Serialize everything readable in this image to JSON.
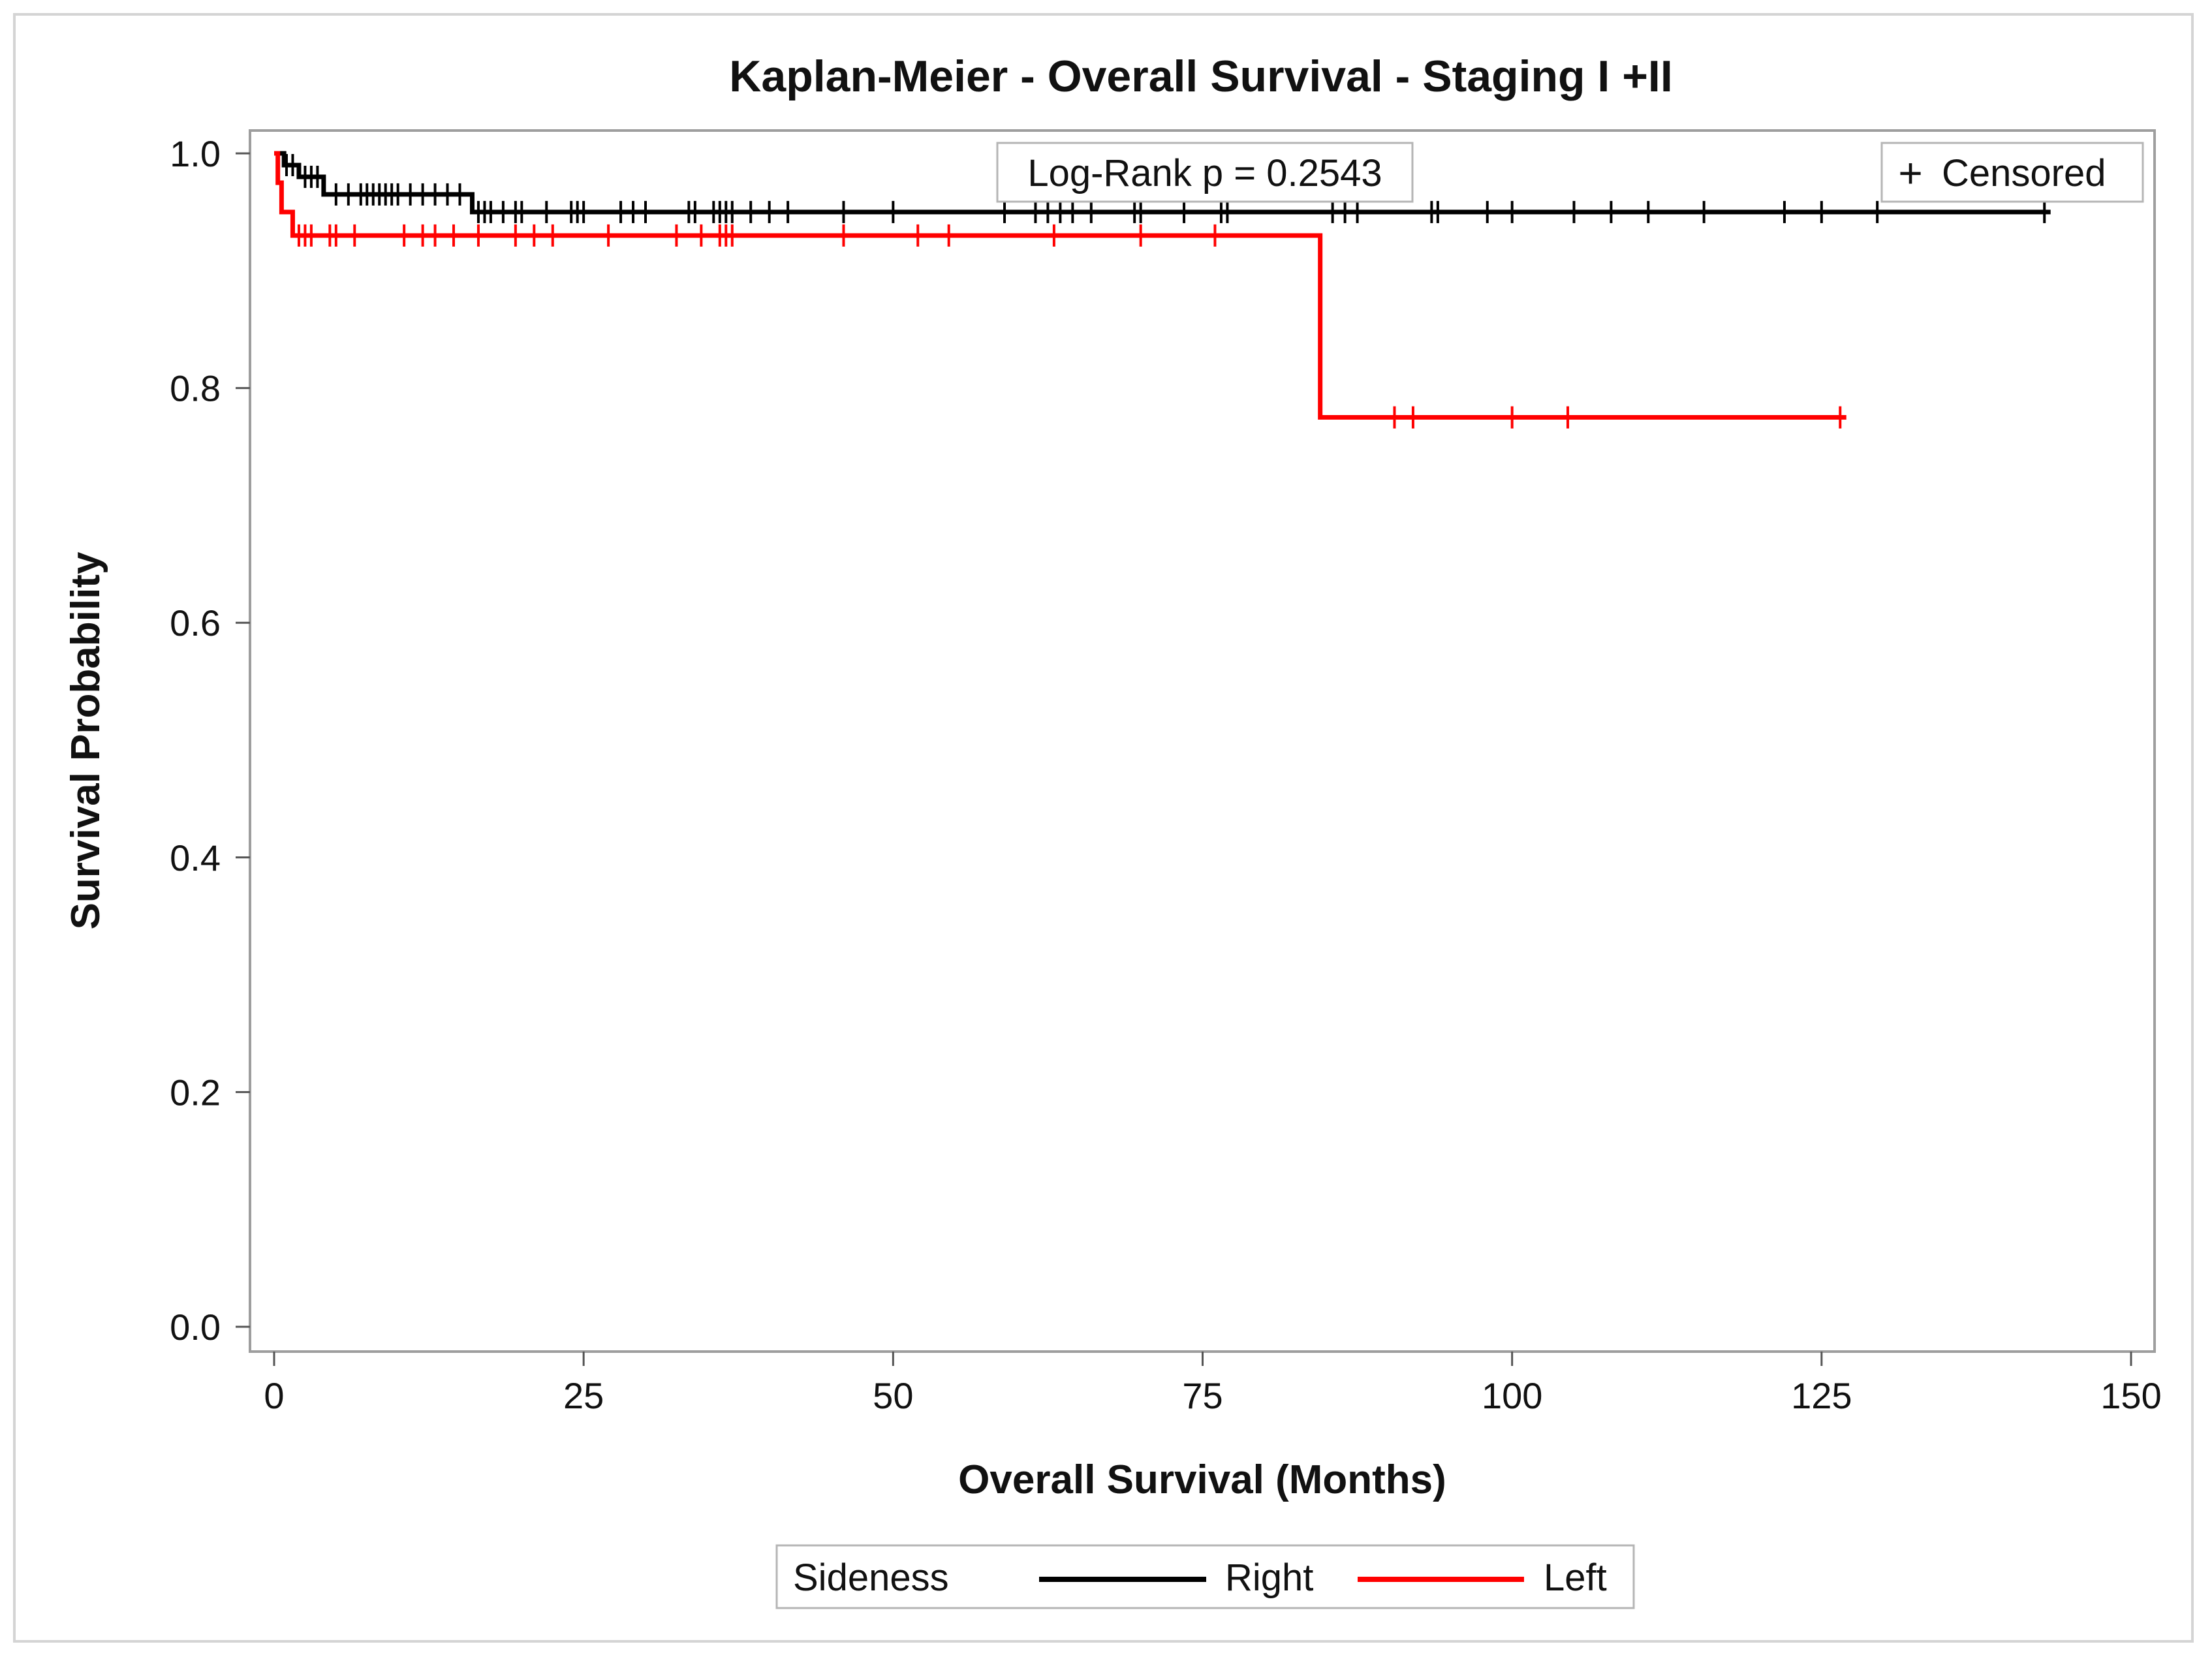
{
  "chart_data": {
    "type": "line",
    "subtype": "kaplan-meier",
    "title": "Kaplan-Meier - Overall Survival - Staging I +II",
    "xlabel": "Overall Survival (Months)",
    "ylabel": "Survival Probability",
    "xlim": [
      0,
      150
    ],
    "ylim": [
      0,
      1
    ],
    "xticks": [
      "0",
      "25",
      "50",
      "75",
      "100",
      "125",
      "150"
    ],
    "yticks": [
      "0.0",
      "0.2",
      "0.4",
      "0.6",
      "0.8",
      "1.0"
    ],
    "annotation": "Log-Rank p = 0.2543",
    "censor_legend": {
      "symbol": "+",
      "label": "Censored"
    },
    "legend": {
      "title": "Sideness",
      "position": "bottom"
    },
    "series": [
      {
        "name": "Right",
        "color": "#000000",
        "steps": [
          [
            0,
            1.0
          ],
          [
            0.8,
            0.99
          ],
          [
            2.0,
            0.98
          ],
          [
            4.0,
            0.965
          ],
          [
            16.0,
            0.95
          ],
          [
            143.5,
            0.95
          ]
        ],
        "censored": [
          1,
          1.5,
          2.5,
          3,
          3.5,
          5,
          6,
          7,
          7.5,
          8,
          8.5,
          9,
          9.5,
          10,
          11,
          12,
          13,
          14,
          15,
          16.5,
          17,
          17.5,
          18.5,
          19.5,
          20,
          22,
          24,
          24.5,
          25,
          28,
          29,
          30,
          33.5,
          34,
          35.5,
          36,
          36.5,
          37,
          38.5,
          40,
          41.5,
          46,
          50,
          59,
          61.5,
          62.5,
          63.5,
          64.5,
          66,
          69.5,
          70,
          73.5,
          76.5,
          77,
          85.5,
          86.5,
          87.5,
          93.5,
          94,
          98,
          100,
          105,
          108,
          111,
          115.5,
          122,
          125,
          129.5,
          143
        ]
      },
      {
        "name": "Left",
        "color": "#ff0000",
        "steps": [
          [
            0,
            1.0
          ],
          [
            0.3,
            0.975
          ],
          [
            0.6,
            0.95
          ],
          [
            1.5,
            0.93
          ],
          [
            84.5,
            0.93
          ],
          [
            84.5,
            0.775
          ],
          [
            127,
            0.775
          ]
        ],
        "censored": [
          2,
          2.5,
          3,
          4.5,
          5,
          6.5,
          10.5,
          12,
          13,
          14.5,
          16.5,
          19.5,
          21,
          22.5,
          27,
          32.5,
          34.5,
          36,
          36.5,
          37,
          46,
          52,
          54.5,
          63,
          70,
          76,
          90.5,
          92,
          100,
          104.5,
          126.5
        ]
      }
    ]
  }
}
